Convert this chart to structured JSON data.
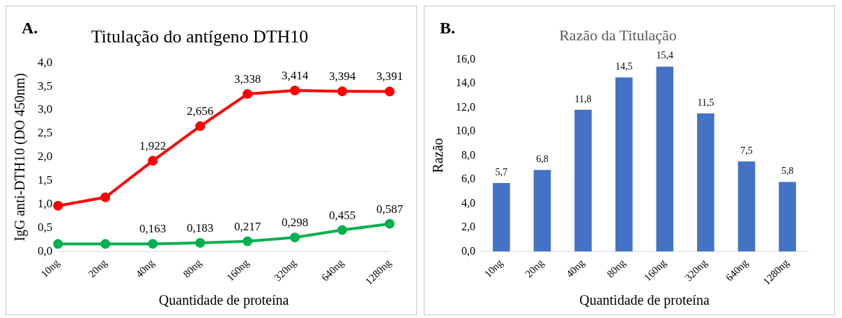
{
  "chart_data": [
    {
      "type": "line",
      "title": "Titulação do antígeno DTH10",
      "xlabel": "Quantidade de proteína",
      "ylabel": "IgG anti-DTH10 (DO 450nm)",
      "annotations": [
        "A."
      ],
      "categories": [
        "10ng",
        "20ng",
        "40ng",
        "80ng",
        "160ng",
        "320ng",
        "640ng",
        "1280ng"
      ],
      "series": [
        {
          "color": "#ff0000",
          "values": [
            0.97,
            1.15,
            1.922,
            2.656,
            3.338,
            3.414,
            3.394,
            3.391
          ],
          "value_labels": [
            null,
            null,
            "1,922",
            "2,656",
            "3,338",
            "3,414",
            "3,394",
            "3,391"
          ]
        },
        {
          "color": "#00b050",
          "values": [
            0.16,
            0.16,
            0.163,
            0.183,
            0.217,
            0.298,
            0.455,
            0.587
          ],
          "value_labels": [
            null,
            null,
            "0,163",
            "0,183",
            "0,217",
            "0,298",
            "0,455",
            "0,587"
          ]
        }
      ],
      "ylim": [
        0,
        4
      ],
      "yticks": [
        {
          "value": 0,
          "label": "0,0"
        },
        {
          "value": 0.5,
          "label": "0,5"
        },
        {
          "value": 1,
          "label": "1,0"
        },
        {
          "value": 1.5,
          "label": "1,5"
        },
        {
          "value": 2,
          "label": "2,0"
        },
        {
          "value": 2.5,
          "label": "2,5"
        },
        {
          "value": 3,
          "label": "3,0"
        },
        {
          "value": 3.5,
          "label": "3,5"
        },
        {
          "value": 4,
          "label": "4,0"
        }
      ],
      "marker": "circle",
      "grid": false,
      "legend": false
    },
    {
      "type": "bar",
      "title": "Razão da Titulação",
      "xlabel": "Quantidade de proteína",
      "ylabel": "Razão",
      "annotations": [
        "B."
      ],
      "categories": [
        "10ng",
        "20ng",
        "40ng",
        "80ng",
        "160ng",
        "320ng",
        "640ng",
        "1280ng"
      ],
      "values": [
        5.7,
        6.8,
        11.8,
        14.5,
        15.4,
        11.5,
        7.5,
        5.8
      ],
      "color": "#4472c4",
      "value_labels": [
        "5,7",
        "6,8",
        "11,8",
        "14,5",
        "15,4",
        "11,5",
        "7,5",
        "5,8"
      ],
      "ylim": [
        0,
        16
      ],
      "yticks": [
        {
          "value": 0,
          "label": "0,0"
        },
        {
          "value": 2,
          "label": "2,0"
        },
        {
          "value": 4,
          "label": "4,0"
        },
        {
          "value": 6,
          "label": "6,0"
        },
        {
          "value": 8,
          "label": "8,0"
        },
        {
          "value": 10,
          "label": "10,0"
        },
        {
          "value": 12,
          "label": "12,0"
        },
        {
          "value": 14,
          "label": "14,0"
        },
        {
          "value": 16,
          "label": "16,0"
        }
      ],
      "grid": false,
      "legend": false
    }
  ]
}
